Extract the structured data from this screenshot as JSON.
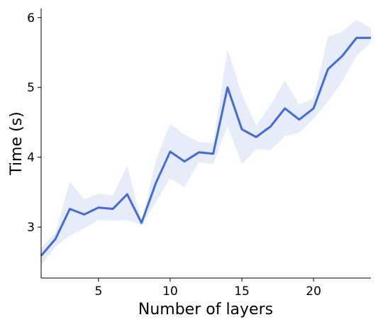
{
  "chart_data": {
    "type": "line",
    "xlabel": "Number of layers",
    "ylabel": "Time (s)",
    "x": [
      1,
      2,
      3,
      4,
      5,
      6,
      7,
      8,
      9,
      10,
      11,
      12,
      13,
      14,
      15,
      16,
      17,
      18,
      19,
      20,
      21,
      22,
      23,
      24
    ],
    "series": [
      {
        "color": "#4169e1",
        "band_color": "#dfe6f8",
        "values": [
          2.59,
          2.83,
          3.26,
          3.18,
          3.28,
          3.26,
          3.47,
          3.06,
          3.63,
          4.08,
          3.94,
          4.07,
          4.05,
          5.0,
          4.4,
          4.29,
          4.44,
          4.7,
          4.54,
          4.7,
          5.26,
          5.45,
          5.71,
          5.71
        ],
        "upper": [
          2.7,
          2.92,
          3.65,
          3.4,
          3.48,
          3.45,
          3.88,
          3.08,
          3.95,
          4.48,
          4.32,
          4.22,
          4.2,
          5.55,
          4.9,
          4.45,
          4.75,
          5.1,
          4.75,
          4.85,
          5.72,
          5.8,
          5.97,
          5.85
        ],
        "lower": [
          2.45,
          2.72,
          2.88,
          2.98,
          3.1,
          3.09,
          3.1,
          3.03,
          3.35,
          3.7,
          3.57,
          3.93,
          3.9,
          4.45,
          3.9,
          4.12,
          4.1,
          4.3,
          4.35,
          4.55,
          4.8,
          5.08,
          5.45,
          5.65
        ]
      }
    ],
    "xlim": [
      1,
      24
    ],
    "ylim": [
      2.27,
      6.13
    ],
    "xticks": [
      5,
      10,
      15,
      20
    ],
    "yticks": [
      3,
      4,
      5,
      6
    ]
  }
}
